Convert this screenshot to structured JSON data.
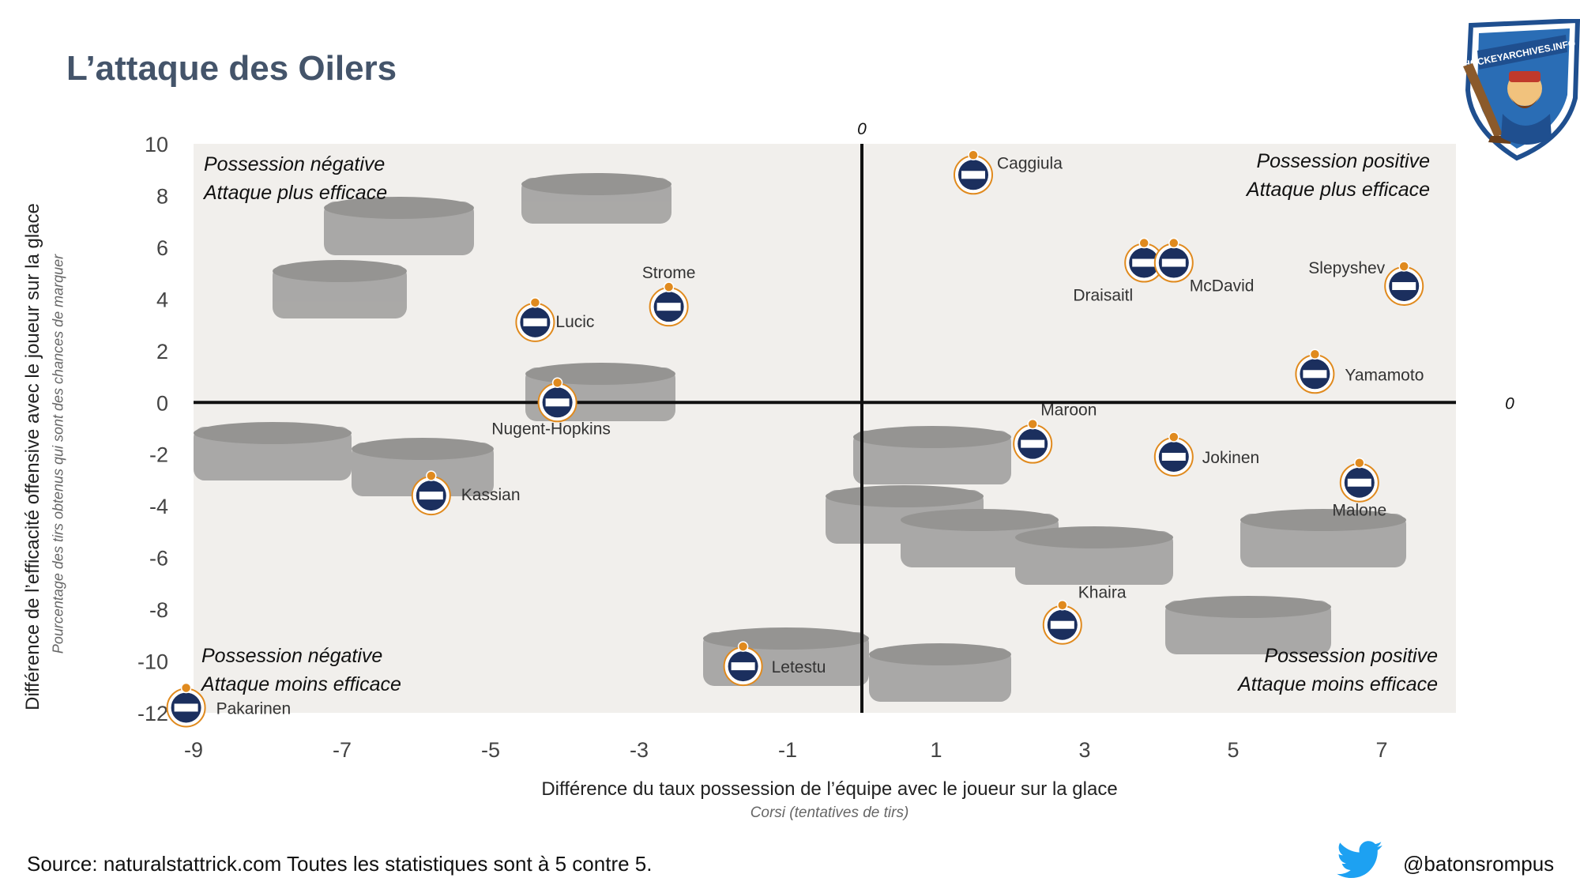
{
  "title": "L’attaque des Oilers",
  "source": "Source: naturalstattrick.com Toutes les statistiques sont à 5 contre 5.",
  "twitter_handle": "@batonsrompus",
  "logo_text": "HOCKEYARCHIVES.INFO",
  "icons": {
    "logo": "hockeyarchives-logo",
    "twitter": "twitter-bird-icon",
    "marker": "oilers-logo-icon"
  },
  "colors": {
    "oilers_blue": "#1b2f5e",
    "oilers_orange": "#e08a1e",
    "twitter_blue": "#1da1f2",
    "title": "#44546a"
  },
  "chart_data": {
    "type": "scatter",
    "title": "L’attaque des Oilers",
    "xlabel": "Différence du taux possession de l’équipe avec le joueur sur la glace",
    "xlabel_sub": "Corsi (tentatives de tirs)",
    "ylabel": "Différence de l’efficacité offensive  avec le joueur sur la glace",
    "ylabel_sub": "Pourcentage des tirs obtenus qui sont des chances de marquer",
    "xlim": [
      -9,
      8
    ],
    "ylim": [
      -12,
      10
    ],
    "x_ticks": [
      -9,
      -7,
      -5,
      -3,
      -1,
      1,
      3,
      5,
      7
    ],
    "y_ticks": [
      10,
      8,
      6,
      4,
      2,
      0,
      -2,
      -4,
      -6,
      -8,
      -10,
      -12
    ],
    "x_ticks_labels": [
      "-9",
      "-7",
      "-5",
      "-3",
      "-1",
      "1",
      "3",
      "5",
      "7"
    ],
    "y_ticks_labels": [
      "10",
      "8",
      "6",
      "4",
      "2",
      "0",
      "-2",
      "-4",
      "-6",
      "-8",
      "-10",
      "-12"
    ],
    "zero_x_label": "0",
    "zero_y_label": "0",
    "grid": false,
    "quadrants": {
      "top_left": [
        "Possession négative",
        "Attaque plus efficace"
      ],
      "top_right": [
        "Possession positive",
        "Attaque plus efficace"
      ],
      "bottom_left": [
        "Possession négative",
        "Attaque moins efficace"
      ],
      "bottom_right": [
        "Possession positive",
        "Attaque moins efficace"
      ]
    },
    "points": [
      {
        "name": "Caggiula",
        "x": 1.5,
        "y": 8.8
      },
      {
        "name": "Draisaitl",
        "x": 3.8,
        "y": 5.4
      },
      {
        "name": "McDavid",
        "x": 4.2,
        "y": 5.4
      },
      {
        "name": "Slepyshev",
        "x": 7.3,
        "y": 4.5
      },
      {
        "name": "Yamamoto",
        "x": 6.1,
        "y": 1.1
      },
      {
        "name": "Strome",
        "x": -2.6,
        "y": 3.7
      },
      {
        "name": "Lucic",
        "x": -4.4,
        "y": 3.1
      },
      {
        "name": "Nugent-Hopkins",
        "x": -4.1,
        "y": 0.0
      },
      {
        "name": "Kassian",
        "x": -5.8,
        "y": -3.6
      },
      {
        "name": "Maroon",
        "x": 2.3,
        "y": -1.6
      },
      {
        "name": "Jokinen",
        "x": 4.2,
        "y": -2.1
      },
      {
        "name": "Malone",
        "x": 6.7,
        "y": -3.1
      },
      {
        "name": "Khaira",
        "x": 2.7,
        "y": -8.6
      },
      {
        "name": "Letestu",
        "x": -1.6,
        "y": -10.2
      },
      {
        "name": "Pakarinen",
        "x": -9.1,
        "y": -11.8
      }
    ]
  }
}
